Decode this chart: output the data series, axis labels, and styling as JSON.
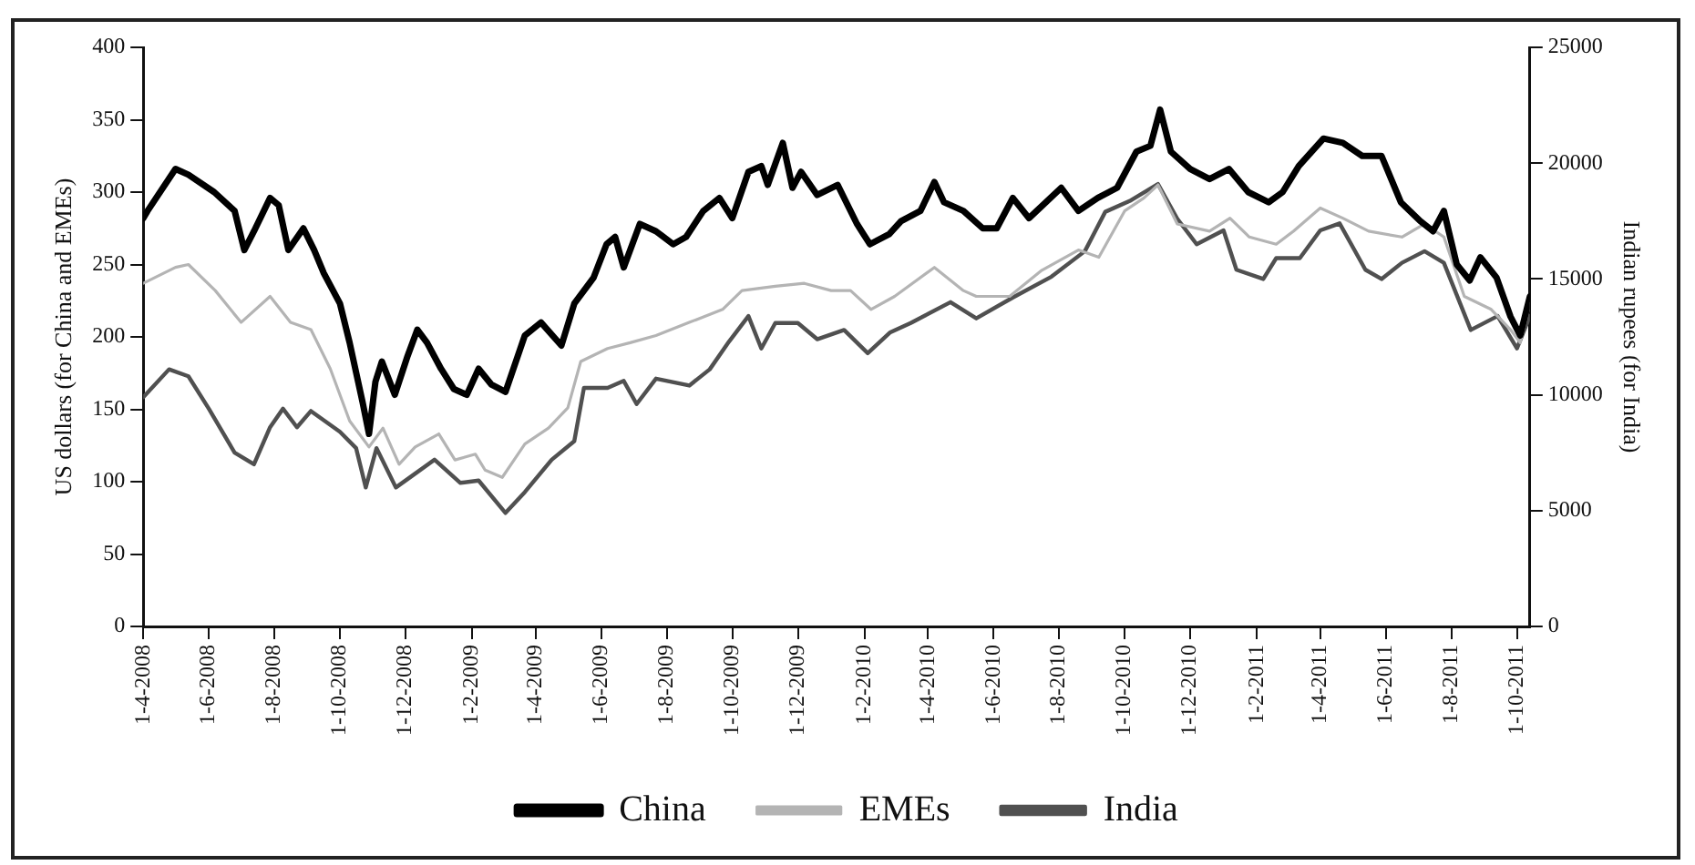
{
  "chart_data": {
    "type": "line",
    "ylabel": "US dollars (for China and EMEs)",
    "y2label": "Indian rupees (for India)",
    "xlim": [
      "2008-04-01",
      "2011-10-13"
    ],
    "xticks": [
      {
        "value": "2008-04-01",
        "label": "1-4-2008"
      },
      {
        "value": "2008-06-01",
        "label": "1-6-2008"
      },
      {
        "value": "2008-08-01",
        "label": "1-8-2008"
      },
      {
        "value": "2008-10-01",
        "label": "1-10-2008"
      },
      {
        "value": "2008-12-01",
        "label": "1-12-2008"
      },
      {
        "value": "2009-02-01",
        "label": "1-2-2009"
      },
      {
        "value": "2009-04-01",
        "label": "1-4-2009"
      },
      {
        "value": "2009-06-01",
        "label": "1-6-2009"
      },
      {
        "value": "2009-08-01",
        "label": "1-8-2009"
      },
      {
        "value": "2009-10-01",
        "label": "1-10-2009"
      },
      {
        "value": "2009-12-01",
        "label": "1-12-2009"
      },
      {
        "value": "2010-02-01",
        "label": "1-2-2010"
      },
      {
        "value": "2010-04-01",
        "label": "1-4-2010"
      },
      {
        "value": "2010-06-01",
        "label": "1-6-2010"
      },
      {
        "value": "2010-08-01",
        "label": "1-8-2010"
      },
      {
        "value": "2010-10-01",
        "label": "1-10-2010"
      },
      {
        "value": "2010-12-01",
        "label": "1-12-2010"
      },
      {
        "value": "2011-02-01",
        "label": "1-2-2011"
      },
      {
        "value": "2011-04-01",
        "label": "1-4-2011"
      },
      {
        "value": "2011-06-01",
        "label": "1-6-2011"
      },
      {
        "value": "2011-08-01",
        "label": "1-8-2011"
      },
      {
        "value": "2011-10-01",
        "label": "1-10-2011"
      }
    ],
    "ylim": [
      0,
      400
    ],
    "yticks": [
      0,
      50,
      100,
      150,
      200,
      250,
      300,
      350,
      400
    ],
    "y2lim": [
      0,
      25000
    ],
    "y2ticks": [
      0,
      5000,
      10000,
      15000,
      20000,
      25000
    ],
    "grid": false,
    "legend": "bottom",
    "line_style": "solid",
    "series": [
      {
        "name": "China",
        "color": "#000000",
        "x": [
          "2008-04-01",
          "2008-04-05",
          "2008-05-01",
          "2008-05-13",
          "2008-06-06",
          "2008-06-25",
          "2008-07-04",
          "2008-07-13",
          "2008-07-28",
          "2008-08-05",
          "2008-08-14",
          "2008-08-28",
          "2008-09-07",
          "2008-09-16",
          "2008-10-01",
          "2008-10-10",
          "2008-10-22",
          "2008-10-28",
          "2008-11-03",
          "2008-11-09",
          "2008-11-21",
          "2008-12-03",
          "2008-12-12",
          "2008-12-21",
          "2009-01-03",
          "2009-01-15",
          "2009-01-27",
          "2009-02-07",
          "2009-02-19",
          "2009-03-04",
          "2009-03-22",
          "2009-04-06",
          "2009-04-25",
          "2009-05-07",
          "2009-05-25",
          "2009-06-06",
          "2009-06-14",
          "2009-06-22",
          "2009-07-07",
          "2009-07-22",
          "2009-08-07",
          "2009-08-19",
          "2009-09-04",
          "2009-09-19",
          "2009-10-01",
          "2009-10-16",
          "2009-10-28",
          "2009-11-03",
          "2009-11-17",
          "2009-11-26",
          "2009-12-04",
          "2009-12-19",
          "2010-01-07",
          "2010-01-25",
          "2010-02-06",
          "2010-02-24",
          "2010-03-07",
          "2010-03-25",
          "2010-04-07",
          "2010-04-16",
          "2010-05-04",
          "2010-05-22",
          "2010-06-04",
          "2010-06-19",
          "2010-07-04",
          "2010-08-03",
          "2010-08-19",
          "2010-09-06",
          "2010-09-24",
          "2010-10-12",
          "2010-10-25",
          "2010-11-03",
          "2010-11-13",
          "2010-12-01",
          "2010-12-19",
          "2011-01-06",
          "2011-01-24",
          "2011-02-12",
          "2011-02-25",
          "2011-03-12",
          "2011-04-04",
          "2011-04-22",
          "2011-05-10",
          "2011-05-28",
          "2011-06-15",
          "2011-07-03",
          "2011-07-15",
          "2011-07-25",
          "2011-08-06",
          "2011-08-18",
          "2011-08-28",
          "2011-09-12",
          "2011-09-25",
          "2011-10-04",
          "2011-10-13"
        ],
        "values": [
          282,
          287,
          316,
          312,
          300,
          287,
          260,
          273,
          296,
          291,
          260,
          275,
          260,
          244,
          223,
          196,
          155,
          133,
          169,
          183,
          160,
          187,
          205,
          196,
          178,
          164,
          160,
          178,
          167,
          162,
          201,
          210,
          194,
          223,
          241,
          264,
          269,
          248,
          278,
          273,
          264,
          269,
          287,
          296,
          282,
          314,
          318,
          305,
          334,
          303,
          314,
          298,
          305,
          278,
          264,
          271,
          280,
          287,
          307,
          293,
          287,
          275,
          275,
          296,
          282,
          303,
          287,
          296,
          303,
          328,
          332,
          357,
          328,
          316,
          309,
          316,
          300,
          293,
          300,
          318,
          337,
          334,
          325,
          325,
          293,
          280,
          273,
          287,
          250,
          239,
          255,
          241,
          214,
          201,
          228
        ]
      },
      {
        "name": "EMEs",
        "color": "#b4b4b4",
        "x": [
          "2008-04-01",
          "2008-05-01",
          "2008-05-13",
          "2008-06-07",
          "2008-07-01",
          "2008-07-28",
          "2008-08-16",
          "2008-09-04",
          "2008-09-22",
          "2008-10-10",
          "2008-10-28",
          "2008-11-10",
          "2008-11-25",
          "2008-12-10",
          "2009-01-01",
          "2009-01-16",
          "2009-02-04",
          "2009-02-13",
          "2009-03-01",
          "2009-03-22",
          "2009-04-13",
          "2009-05-01",
          "2009-05-13",
          "2009-06-07",
          "2009-06-28",
          "2009-07-22",
          "2009-08-22",
          "2009-09-22",
          "2009-10-10",
          "2009-11-10",
          "2009-12-07",
          "2010-01-01",
          "2010-01-19",
          "2010-02-07",
          "2010-03-01",
          "2010-04-07",
          "2010-05-04",
          "2010-05-16",
          "2010-06-16",
          "2010-07-16",
          "2010-08-19",
          "2010-09-07",
          "2010-10-01",
          "2010-10-19",
          "2010-11-01",
          "2010-11-19",
          "2010-12-19",
          "2011-01-07",
          "2011-01-25",
          "2011-02-19",
          "2011-03-07",
          "2011-04-01",
          "2011-04-22",
          "2011-05-16",
          "2011-06-16",
          "2011-07-07",
          "2011-07-25",
          "2011-08-13",
          "2011-09-07",
          "2011-09-25",
          "2011-10-04",
          "2011-10-13"
        ],
        "values": [
          237,
          248,
          250,
          232,
          210,
          228,
          210,
          205,
          178,
          142,
          124,
          137,
          112,
          124,
          133,
          115,
          119,
          108,
          103,
          126,
          137,
          151,
          183,
          192,
          196,
          201,
          210,
          219,
          232,
          235,
          237,
          232,
          232,
          219,
          228,
          248,
          232,
          228,
          228,
          246,
          260,
          255,
          287,
          296,
          305,
          278,
          273,
          282,
          269,
          264,
          273,
          289,
          282,
          273,
          269,
          278,
          269,
          228,
          219,
          205,
          196,
          223
        ]
      },
      {
        "name": "India",
        "color": "#505050",
        "axis": "y2",
        "x": [
          "2008-04-01",
          "2008-04-25",
          "2008-05-13",
          "2008-06-01",
          "2008-06-25",
          "2008-07-13",
          "2008-07-28",
          "2008-08-09",
          "2008-08-22",
          "2008-09-04",
          "2008-10-01",
          "2008-10-16",
          "2008-10-25",
          "2008-11-04",
          "2008-11-22",
          "2008-12-10",
          "2008-12-28",
          "2009-01-21",
          "2009-02-07",
          "2009-03-04",
          "2009-03-22",
          "2009-04-16",
          "2009-05-07",
          "2009-05-16",
          "2009-06-07",
          "2009-06-22",
          "2009-07-04",
          "2009-07-22",
          "2009-08-22",
          "2009-09-10",
          "2009-09-28",
          "2009-10-16",
          "2009-10-28",
          "2009-11-10",
          "2009-12-01",
          "2009-12-19",
          "2010-01-13",
          "2010-02-04",
          "2010-02-25",
          "2010-03-16",
          "2010-04-22",
          "2010-05-16",
          "2010-06-19",
          "2010-07-25",
          "2010-08-25",
          "2010-09-13",
          "2010-10-07",
          "2010-11-01",
          "2010-11-19",
          "2010-12-07",
          "2011-01-01",
          "2011-01-13",
          "2011-02-07",
          "2011-02-19",
          "2011-03-13",
          "2011-04-01",
          "2011-04-19",
          "2011-05-13",
          "2011-05-28",
          "2011-06-16",
          "2011-07-07",
          "2011-07-25",
          "2011-08-19",
          "2011-09-13",
          "2011-10-01",
          "2011-10-13"
        ],
        "values": [
          9900,
          11100,
          10800,
          9400,
          7500,
          7000,
          8600,
          9400,
          8600,
          9300,
          8400,
          7700,
          6000,
          7700,
          6000,
          6600,
          7200,
          6200,
          6300,
          4900,
          5800,
          7200,
          8000,
          10300,
          10300,
          10600,
          9600,
          10700,
          10400,
          11100,
          12300,
          13400,
          12000,
          13100,
          13100,
          12400,
          12800,
          11800,
          12700,
          13100,
          14000,
          13300,
          14200,
          15100,
          16200,
          17900,
          18400,
          19100,
          17600,
          16500,
          17100,
          15400,
          15000,
          15900,
          15900,
          17100,
          17400,
          15400,
          15000,
          15700,
          16200,
          15700,
          12800,
          13400,
          12000,
          13400
        ]
      }
    ]
  }
}
